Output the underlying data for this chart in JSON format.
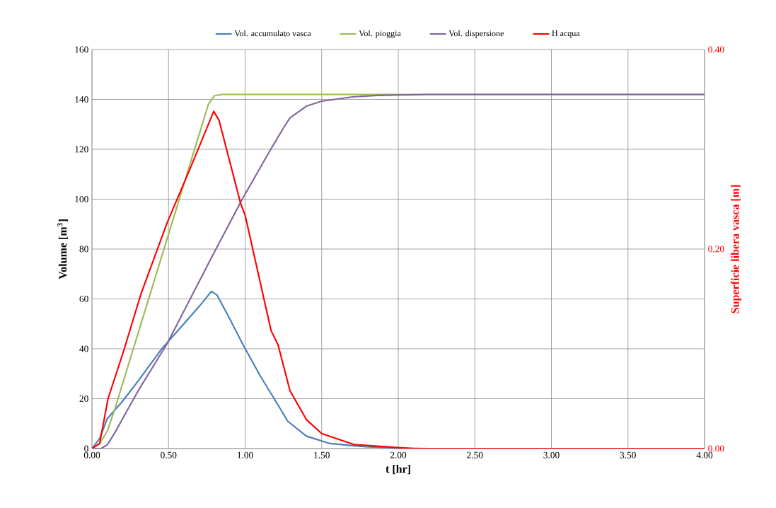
{
  "chart_data": {
    "type": "line",
    "xlabel": "t [hr]",
    "ylabel": "Volume [m$^{3}$]",
    "y2label": "Superficie libera vasca [m]",
    "xlim": [
      0,
      4
    ],
    "ylim": [
      0,
      160
    ],
    "y2lim": [
      0,
      0.4
    ],
    "xticks": [
      {
        "value": 0,
        "label": "0.00"
      },
      {
        "value": 0.5,
        "label": "0.50"
      },
      {
        "value": 1,
        "label": "1.00"
      },
      {
        "value": 1.5,
        "label": "1.50"
      },
      {
        "value": 2,
        "label": "2.00"
      },
      {
        "value": 2.5,
        "label": "2.50"
      },
      {
        "value": 3,
        "label": "3.00"
      },
      {
        "value": 3.5,
        "label": "3.50"
      },
      {
        "value": 4,
        "label": "4.00"
      }
    ],
    "yticks": [
      0,
      20,
      40,
      60,
      80,
      100,
      120,
      140,
      160
    ],
    "y2ticks": [
      {
        "value": 0,
        "label": "0.00"
      },
      {
        "value": 0.2,
        "label": "0.20"
      },
      {
        "value": 0.4,
        "label": "0.40"
      }
    ],
    "grid": true,
    "legend": "top",
    "marker": "none",
    "line_style": "solid",
    "series": [
      {
        "name": "Vol. accumulato vasca",
        "color": "#4a7ebb",
        "x": [
          0,
          0.05,
          0.1,
          0.2,
          0.3,
          0.456,
          0.6,
          0.7,
          0.78,
          0.816,
          0.9,
          0.985,
          1.1,
          1.2,
          1.278,
          1.4,
          1.555,
          1.786,
          2.0,
          2.2,
          4
        ],
        "values": [
          0,
          4,
          12,
          19,
          27,
          40,
          50,
          57,
          63,
          61.6,
          52,
          41.8,
          29,
          19,
          11,
          5,
          2,
          0.7,
          0.2,
          0,
          0
        ]
      },
      {
        "name": "Vol. pioggia",
        "color": "#9bbb59",
        "x": [
          0,
          0.05,
          0.1,
          0.15,
          0.2,
          0.3,
          0.4,
          0.5,
          0.6,
          0.7,
          0.76,
          0.8,
          0.85,
          4
        ],
        "values": [
          0,
          2,
          7,
          16,
          26,
          46,
          66,
          86,
          106,
          126,
          138,
          141.5,
          142,
          142
        ]
      },
      {
        "name": "Vol. dispersione",
        "color": "#8064a2",
        "x": [
          0,
          0.06,
          0.1,
          0.148,
          0.2,
          0.3,
          0.49,
          0.78,
          0.985,
          1.17,
          1.25,
          1.293,
          1.4,
          1.5,
          1.7,
          1.86,
          2.2,
          4
        ],
        "values": [
          0,
          0,
          1.5,
          6.2,
          12,
          23,
          42,
          76.5,
          100.4,
          120.3,
          128.5,
          132.6,
          137.3,
          139.3,
          141,
          141.6,
          142,
          142
        ]
      },
      {
        "name": "H acqua",
        "color": "#ff0000",
        "axis": "y2",
        "x": [
          0,
          0.05,
          0.105,
          0.205,
          0.32,
          0.49,
          0.65,
          0.795,
          0.83,
          0.97,
          1.0,
          1.12,
          1.17,
          1.215,
          1.293,
          1.4,
          1.5,
          1.71,
          2.0,
          2.1,
          4
        ],
        "values": [
          0,
          0.005,
          0.05,
          0.097,
          0.155,
          0.226,
          0.284,
          0.338,
          0.329,
          0.246,
          0.234,
          0.152,
          0.118,
          0.104,
          0.058,
          0.029,
          0.015,
          0.004,
          0.001,
          0,
          0
        ]
      }
    ]
  }
}
